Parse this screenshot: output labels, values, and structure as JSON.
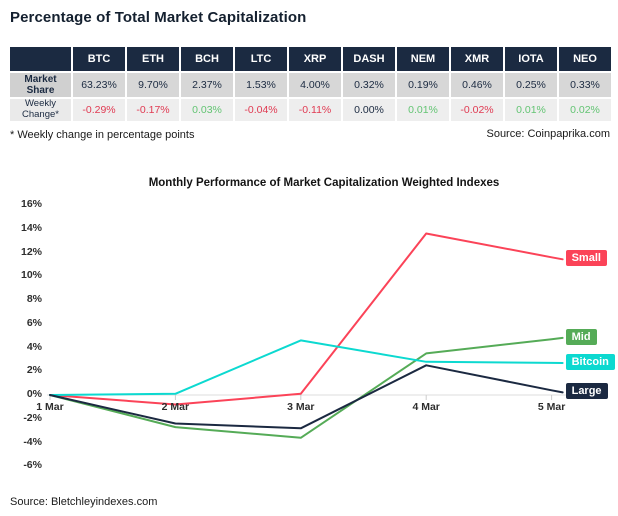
{
  "page": {
    "title": "Percentage of Total Market Capitalization",
    "footnote": "* Weekly change in percentage points",
    "table_source": "Source: Coinpaprika.com",
    "chart_source": "Source: Bletchleyindexes.com"
  },
  "table": {
    "corner_label": "",
    "columns": [
      "BTC",
      "ETH",
      "BCH",
      "LTC",
      "XRP",
      "DASH",
      "NEM",
      "XMR",
      "IOTA",
      "NEO"
    ],
    "rows": [
      {
        "label": "Market Share",
        "values": [
          "63.23%",
          "9.70%",
          "2.37%",
          "1.53%",
          "4.00%",
          "0.32%",
          "0.19%",
          "0.46%",
          "0.25%",
          "0.33%"
        ]
      },
      {
        "label": "Weekly Change*",
        "values": [
          "-0.29%",
          "-0.17%",
          "0.03%",
          "-0.04%",
          "-0.11%",
          "0.00%",
          "0.01%",
          "-0.02%",
          "0.01%",
          "0.02%"
        ]
      }
    ]
  },
  "chart_data": {
    "type": "line",
    "title": "Monthly Performance of Market Capitalization Weighted Indexes",
    "categories": [
      "1 Mar",
      "2 Mar",
      "3 Mar",
      "4 Mar",
      "5 Mar"
    ],
    "series": [
      {
        "name": "Small",
        "color": "#fb4358",
        "values": [
          0,
          -0.8,
          0.1,
          13.6,
          11.6
        ]
      },
      {
        "name": "Mid",
        "color": "#55ab57",
        "values": [
          0,
          -2.7,
          -3.6,
          3.5,
          4.7
        ]
      },
      {
        "name": "Bitcoin",
        "color": "#0cd9d0",
        "values": [
          0,
          0.1,
          4.6,
          2.8,
          2.7
        ]
      },
      {
        "name": "Large",
        "color": "#1b2941",
        "values": [
          0,
          -2.4,
          -2.8,
          2.5,
          0.4
        ]
      }
    ],
    "xlabel": "",
    "ylabel": "",
    "ylim": [
      -6,
      16
    ],
    "ytick_step": 2,
    "ytick_format": "percent",
    "grid": "zero-axis-only",
    "legend_position": "right line-end badges"
  },
  "colors": {
    "header_bg": "#1b2a41",
    "market_share_row_bg": "#d7d7d7",
    "weekly_change_row_bg": "#eeeeee",
    "negative_text": "#e03a52",
    "positive_text": "#63c473",
    "axis_line": "#dddddd",
    "tick": "#cccccc"
  }
}
